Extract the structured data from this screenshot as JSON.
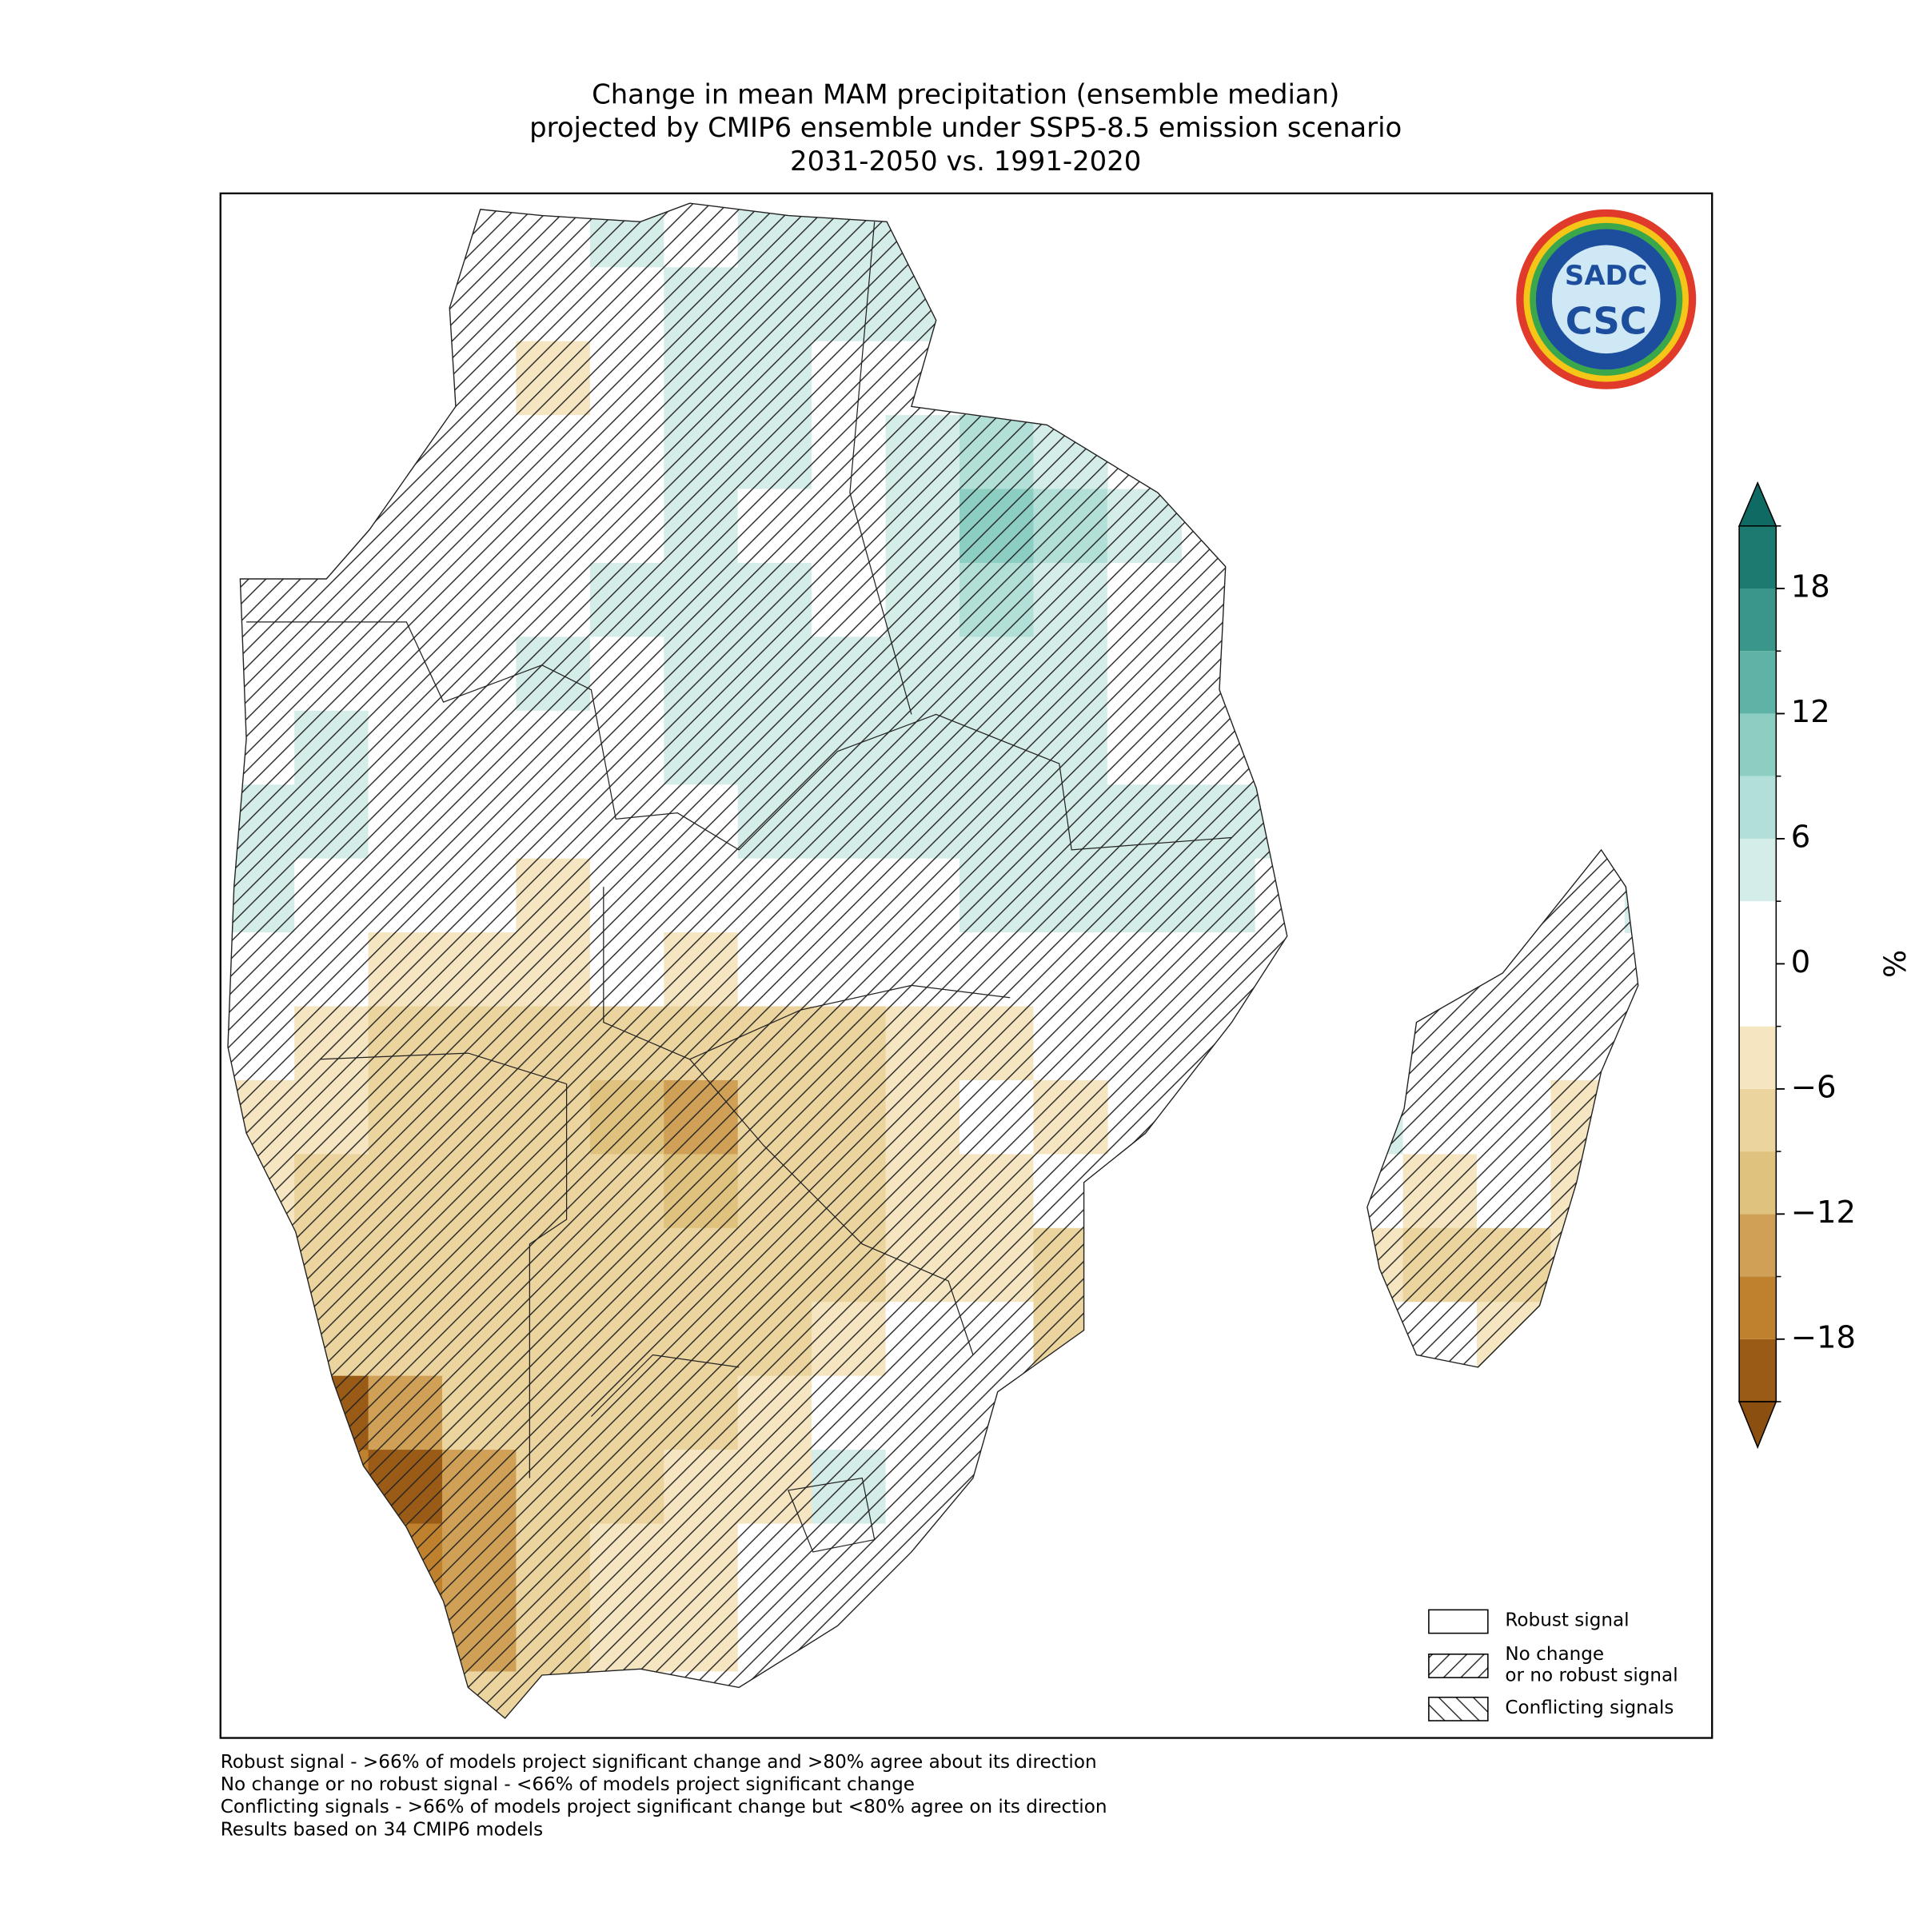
{
  "chart_data": {
    "type": "map",
    "title": [
      "Change in mean MAM precipitation (ensemble median)",
      "projected by CMIP6 ensemble under SSP5-8.5 emission scenario",
      "2031-2050 vs. 1991-2020"
    ],
    "grid": [
      [
        null,
        null,
        null,
        0,
        0,
        4,
        0,
        4,
        4,
        5,
        null,
        null,
        null,
        null,
        null,
        null,
        null,
        null,
        null,
        null
      ],
      [
        null,
        null,
        null,
        0,
        0,
        0,
        4,
        4,
        4,
        4,
        null,
        null,
        null,
        null,
        null,
        null,
        null,
        null,
        null,
        null
      ],
      [
        null,
        null,
        null,
        0,
        -4,
        0,
        4,
        4,
        0,
        0,
        null,
        null,
        null,
        null,
        null,
        null,
        null,
        null,
        null,
        null
      ],
      [
        null,
        null,
        0,
        0,
        0,
        0,
        4,
        4,
        0,
        4,
        8,
        4,
        null,
        null,
        null,
        null,
        null,
        null,
        null,
        null
      ],
      [
        null,
        null,
        0,
        0,
        0,
        0,
        4,
        0,
        0,
        4,
        10,
        8,
        4,
        null,
        null,
        null,
        null,
        null,
        null,
        null
      ],
      [
        0,
        0,
        0,
        0,
        0,
        4,
        4,
        4,
        0,
        4,
        8,
        6,
        0,
        null,
        null,
        null,
        null,
        null,
        null,
        null
      ],
      [
        0,
        0,
        0,
        0,
        4,
        0,
        4,
        6,
        4,
        4,
        6,
        4,
        0,
        0,
        null,
        null,
        null,
        null,
        null,
        null
      ],
      [
        0,
        4,
        0,
        0,
        0,
        0,
        4,
        6,
        4,
        6,
        4,
        4,
        0,
        0,
        null,
        null,
        null,
        null,
        null,
        null
      ],
      [
        4,
        4,
        0,
        0,
        0,
        0,
        0,
        4,
        4,
        4,
        4,
        4,
        4,
        4,
        4,
        null,
        null,
        null,
        null,
        null
      ],
      [
        4,
        0,
        0,
        0,
        -4,
        0,
        0,
        0,
        0,
        0,
        4,
        4,
        4,
        4,
        0,
        null,
        null,
        null,
        0,
        4
      ],
      [
        0,
        0,
        -4,
        -4,
        -4,
        0,
        -4,
        0,
        0,
        0,
        0,
        0,
        0,
        0,
        null,
        null,
        null,
        0,
        0,
        null
      ],
      [
        0,
        -4,
        -6,
        -6,
        -6,
        -6,
        -6,
        -6,
        -6,
        -4,
        -4,
        0,
        0,
        null,
        null,
        null,
        0,
        0,
        0,
        null
      ],
      [
        -4,
        -4,
        -6,
        -6,
        -8,
        -10,
        -12,
        -8,
        -6,
        -4,
        0,
        -4,
        null,
        null,
        null,
        4,
        0,
        0,
        -4,
        null
      ],
      [
        -4,
        -6,
        -6,
        -8,
        -8,
        -8,
        -10,
        -8,
        -6,
        -4,
        -4,
        0,
        null,
        null,
        null,
        0,
        -4,
        0,
        -4,
        null
      ],
      [
        null,
        -6,
        -6,
        -8,
        -8,
        -8,
        -8,
        -8,
        -6,
        -4,
        -4,
        -6,
        -6,
        null,
        null,
        -4,
        -6,
        -6,
        -4,
        null
      ],
      [
        null,
        -6,
        -8,
        -6,
        -8,
        -6,
        -8,
        -6,
        -4,
        0,
        0,
        -6,
        -6,
        null,
        null,
        0,
        0,
        -4,
        0,
        null
      ],
      [
        null,
        -18,
        -14,
        -8,
        -6,
        -6,
        -6,
        -4,
        0,
        0,
        0,
        null,
        null,
        null,
        null,
        null,
        -4,
        null,
        null,
        null
      ],
      [
        null,
        -16,
        -20,
        -12,
        -6,
        -6,
        -4,
        -4,
        4,
        0,
        null,
        null,
        null,
        null,
        null,
        null,
        null,
        null,
        null,
        null
      ],
      [
        null,
        null,
        -16,
        -14,
        -6,
        -4,
        -4,
        0,
        0,
        null,
        null,
        null,
        null,
        null,
        null,
        null,
        null,
        null,
        null,
        null
      ],
      [
        null,
        null,
        -10,
        -12,
        -6,
        -4,
        -4,
        0,
        null,
        null,
        null,
        null,
        null,
        null,
        null,
        null,
        null,
        null,
        null,
        null
      ],
      [
        null,
        null,
        -8,
        -8,
        -6,
        -4,
        0,
        null,
        null,
        null,
        null,
        null,
        null,
        null,
        null,
        null,
        null,
        null,
        null,
        null
      ]
    ],
    "colorbar": {
      "label": "%",
      "lim": [
        -21,
        21
      ],
      "levels": [
        -21,
        -18,
        -15,
        -12,
        -9,
        -6,
        -3,
        3,
        6,
        9,
        12,
        15,
        18,
        21
      ],
      "colors": [
        "#9a5b16",
        "#bf812d",
        "#cfa055",
        "#dfc27d",
        "#ebd49e",
        "#f5e6c1",
        "#ffffff",
        "#d5ede9",
        "#b2e0d8",
        "#8ccfc2",
        "#5fb3a6",
        "#3a968b",
        "#1c7a70"
      ],
      "under_color": "#8b4f0f",
      "over_color": "#0f6a63",
      "ticks": [
        {
          "value": -18,
          "label": "−18"
        },
        {
          "value": -12,
          "label": "−12"
        },
        {
          "value": -6,
          "label": "−6"
        },
        0,
        6,
        12,
        18
      ]
    },
    "legend": [
      {
        "label": [
          "Robust signal"
        ],
        "hatch": "none"
      },
      {
        "label": [
          "No change",
          "or no robust signal"
        ],
        "hatch": "/"
      },
      {
        "label": [
          "Conflicting signals"
        ],
        "hatch": "\\"
      }
    ],
    "logo": {
      "text": "CSC",
      "top": "SADC"
    },
    "footnotes": [
      "Robust signal - >66% of models project significant change and >80% agree about its direction",
      "No change or no robust signal - <66% of models project significant change",
      "Conflicting signals - >66% of models project significant change but <80% agree on its direction",
      "Results based on 34 CMIP6 models"
    ]
  }
}
